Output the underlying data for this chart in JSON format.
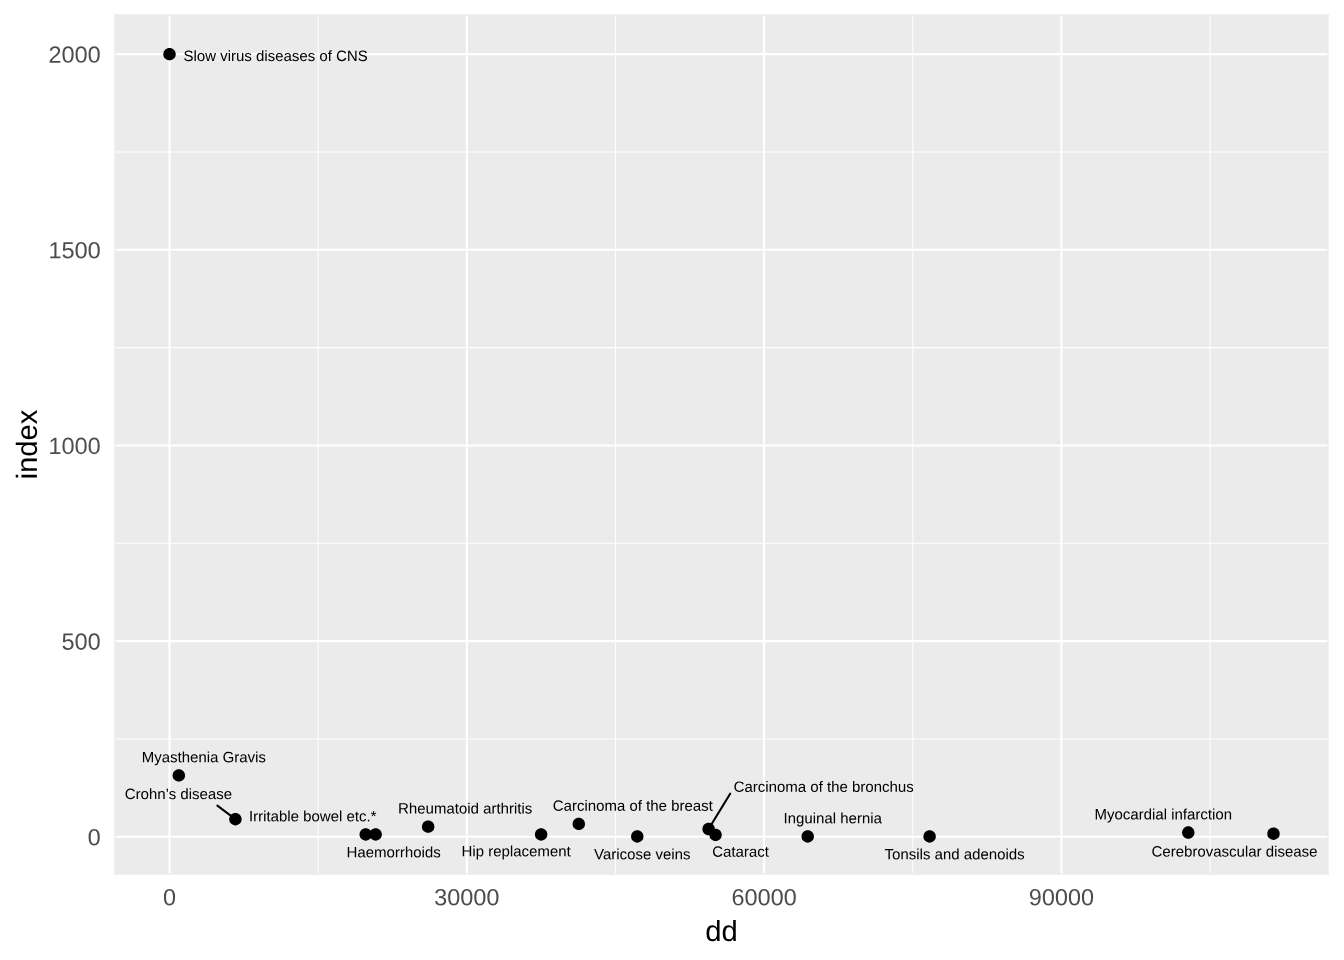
{
  "chart_data": {
    "type": "scatter",
    "xlabel": "dd",
    "ylabel": "index",
    "color": "#000000",
    "marker": "circle",
    "grid": true,
    "x": [
      0,
      940,
      6650,
      19800,
      20800,
      26100,
      37500,
      41300,
      47200,
      54400,
      55100,
      64400,
      76700,
      102800,
      111400
    ],
    "values": [
      2000,
      157,
      45,
      6,
      6,
      26,
      6,
      33,
      1,
      20,
      5,
      1,
      1,
      11,
      8
    ],
    "annotations": [
      {
        "text": "Slow virus diseases of CNS",
        "x": 0,
        "y": 2000
      },
      {
        "text": "Myasthenia Gravis",
        "x": 940,
        "y": 157
      },
      {
        "text": "Crohn’s disease",
        "x": 6650,
        "y": 45
      },
      {
        "text": "Irritable bowel etc.*",
        "x": 19800,
        "y": 6
      },
      {
        "text": "Haemorrhoids",
        "x": 20800,
        "y": 6
      },
      {
        "text": "Rheumatoid arthritis",
        "x": 26100,
        "y": 26
      },
      {
        "text": "Hip replacement",
        "x": 37500,
        "y": 6
      },
      {
        "text": "Carcinoma of the breast",
        "x": 41300,
        "y": 33
      },
      {
        "text": "Varicose veins",
        "x": 47200,
        "y": 1
      },
      {
        "text": "Carcinoma of the bronchus",
        "x": 54400,
        "y": 20
      },
      {
        "text": "Cataract",
        "x": 55100,
        "y": 5
      },
      {
        "text": "Inguinal hernia",
        "x": 64400,
        "y": 1
      },
      {
        "text": "Tonsils and adenoids",
        "x": 76700,
        "y": 1
      },
      {
        "text": "Myocardial infarction",
        "x": 102800,
        "y": 11
      },
      {
        "text": "Cerebrovascular disease",
        "x": 111400,
        "y": 8
      }
    ],
    "xlim": [
      -5500,
      116900
    ],
    "ylim": [
      -95,
      2100
    ],
    "xticks": [
      0,
      30000,
      60000,
      90000
    ],
    "yticks": [
      0,
      500,
      1000,
      1500,
      2000
    ]
  }
}
